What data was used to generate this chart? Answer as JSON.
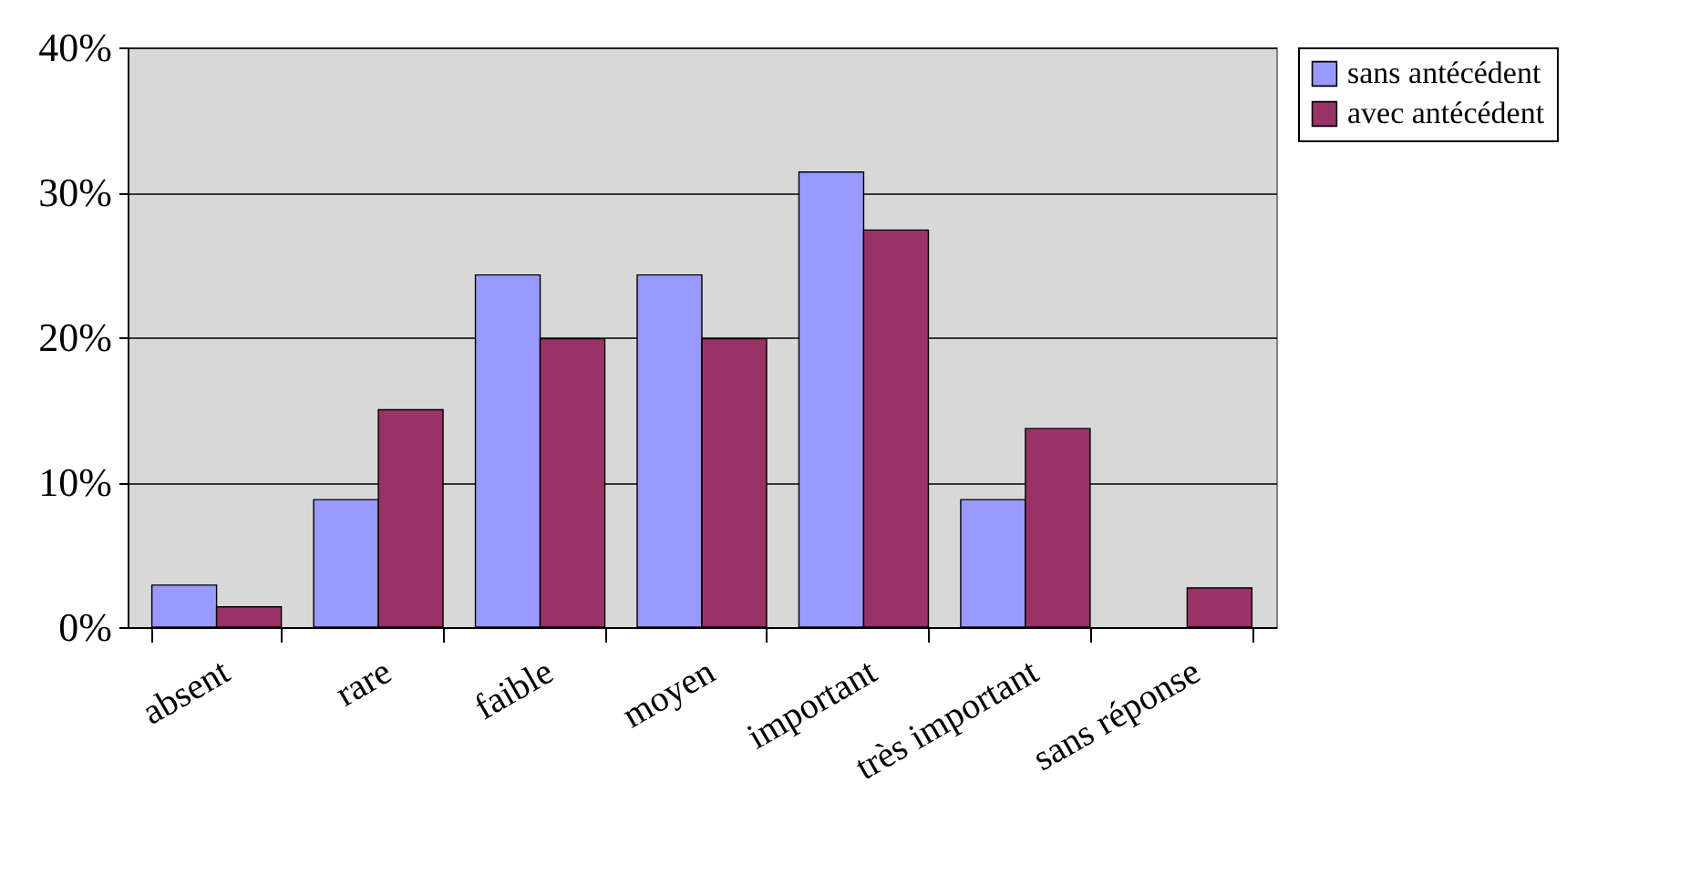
{
  "chart_data": {
    "type": "bar",
    "categories": [
      "absent",
      "rare",
      "faible",
      "moyen",
      "important",
      "très important",
      "sans réponse"
    ],
    "series": [
      {
        "name": "sans antécédent",
        "color": "#9999ff",
        "values": [
          2.9,
          8.8,
          24.3,
          24.3,
          31.4,
          8.8,
          null
        ]
      },
      {
        "name": "avec antécédent",
        "color": "#993366",
        "values": [
          1.4,
          15.0,
          19.9,
          19.9,
          27.4,
          13.7,
          2.7
        ]
      }
    ],
    "ylim": [
      0,
      40
    ],
    "yticks": [
      {
        "value": 0,
        "label": "0%"
      },
      {
        "value": 10,
        "label": "10%"
      },
      {
        "value": 20,
        "label": "20%"
      },
      {
        "value": 30,
        "label": "30%"
      },
      {
        "value": 40,
        "label": "40%"
      }
    ],
    "grid": "y",
    "legend": "right"
  }
}
